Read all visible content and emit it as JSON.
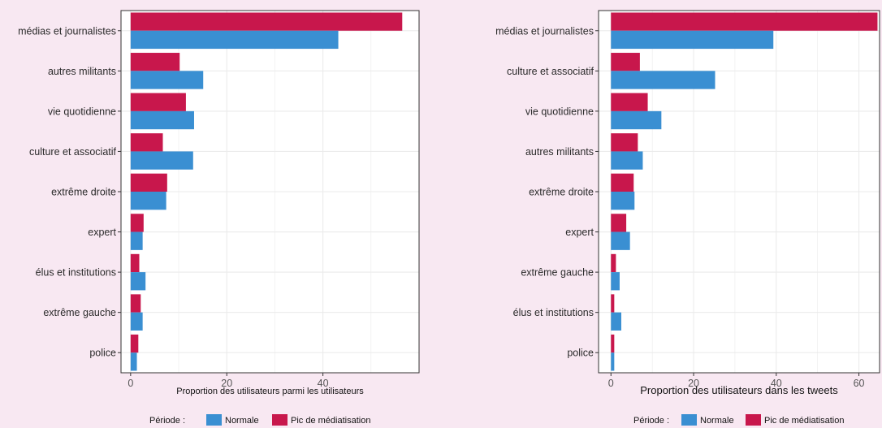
{
  "colors": {
    "normale": "#3a8fd2",
    "pic": "#c8174c",
    "panel": "#ffffff",
    "grid": "#ebebeb"
  },
  "legend": {
    "title": "Période :",
    "normale": "Normale",
    "pic": "Pic de médiatisation"
  },
  "chart_data": [
    {
      "type": "bar",
      "orientation": "horizontal",
      "xlabel": "Proportion des utilisateurs parmi les utilisateurs",
      "xlim": [
        -2,
        60
      ],
      "xticks": [
        0,
        20,
        40
      ],
      "categories": [
        "médias et journalistes",
        "autres militants",
        "vie quotidienne",
        "culture et associatif",
        "extrême droite",
        "expert",
        "élus et institutions",
        "extrême gauche",
        "police"
      ],
      "series": [
        {
          "name": "Pic de médiatisation",
          "values": [
            56.5,
            10.2,
            11.5,
            6.7,
            7.6,
            2.7,
            1.8,
            2.1,
            1.6
          ]
        },
        {
          "name": "Normale",
          "values": [
            43.2,
            15.1,
            13.2,
            13.0,
            7.4,
            2.5,
            3.1,
            2.5,
            1.3
          ]
        }
      ],
      "legend_position": "bottom",
      "grid": true
    },
    {
      "type": "bar",
      "orientation": "horizontal",
      "xlabel": "Proportion des utilisateurs dans les tweets",
      "xlim": [
        -3,
        65
      ],
      "xticks": [
        0,
        20,
        40,
        60
      ],
      "categories": [
        "médias et journalistes",
        "culture et associatif",
        "vie quotidienne",
        "autres militants",
        "extrême droite",
        "expert",
        "extrême gauche",
        "élus et institutions",
        "police"
      ],
      "series": [
        {
          "name": "Pic de médiatisation",
          "values": [
            64.5,
            7.0,
            8.9,
            6.5,
            5.5,
            3.7,
            1.2,
            0.8,
            0.8
          ]
        },
        {
          "name": "Normale",
          "values": [
            39.3,
            25.2,
            12.2,
            7.7,
            5.7,
            4.6,
            2.1,
            2.5,
            0.8
          ]
        }
      ],
      "legend_position": "bottom",
      "grid": true
    }
  ]
}
